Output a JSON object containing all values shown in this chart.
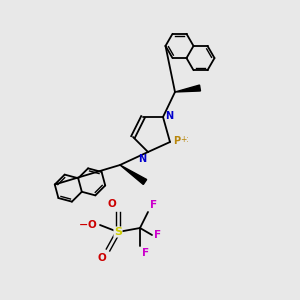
{
  "bg_color": "#e8e8e8",
  "fig_width": 3.0,
  "fig_height": 3.0,
  "dpi": 100,
  "atom_colors": {
    "N": "#0000cc",
    "P": "#b8860b",
    "S": "#cccc00",
    "O": "#cc0000",
    "F": "#cc00cc",
    "C": "#000000",
    "minus": "#cc0000"
  }
}
